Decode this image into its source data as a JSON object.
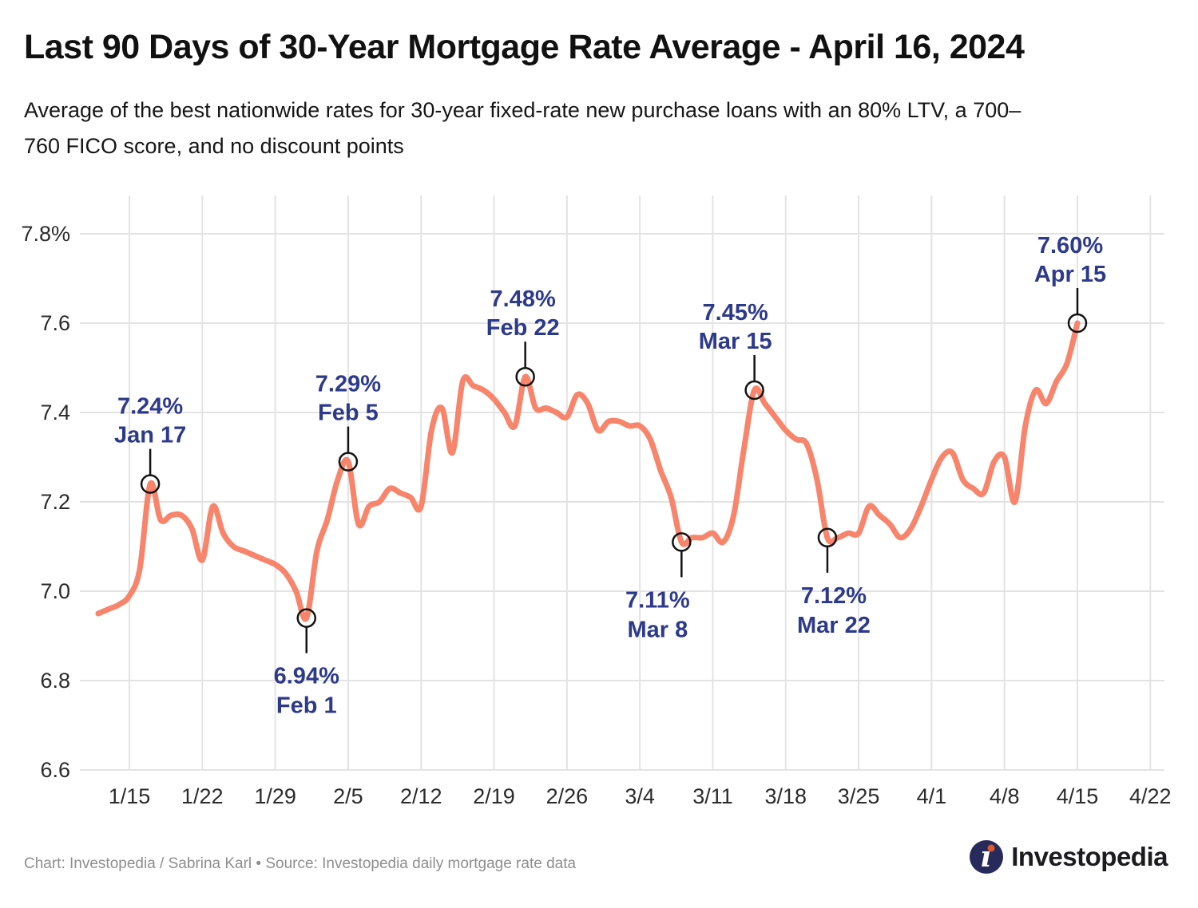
{
  "header": {
    "title": "Last 90 Days of 30-Year Mortgage Rate Average - April 16, 2024",
    "subtitle_line1": "Average of the best nationwide rates for 30-year fixed-rate new purchase loans with an 80% LTV, a 700–",
    "subtitle_line2": "760 FICO score, and no discount points"
  },
  "chart_data": {
    "type": "line",
    "title": "Last 90 Days of 30-Year Mortgage Rate Average - April 16, 2024",
    "xlabel": "",
    "ylabel": "",
    "ylim": [
      6.6,
      7.8
    ],
    "grid": true,
    "legend": "none",
    "line_color": "#F7846B",
    "marker_stroke_color": "#131313",
    "annotation_color": "#2D3A8C",
    "grid_color": "#E3E3E3",
    "tick_color": "#2B2B2B",
    "y_ticks": [
      {
        "value": 7.8,
        "label": "7.8%"
      },
      {
        "value": 7.6,
        "label": "7.6"
      },
      {
        "value": 7.4,
        "label": "7.4"
      },
      {
        "value": 7.2,
        "label": "7.2"
      },
      {
        "value": 7.0,
        "label": "7.0"
      },
      {
        "value": 6.8,
        "label": "6.8"
      },
      {
        "value": 6.6,
        "label": "6.6"
      }
    ],
    "x_ticks": [
      {
        "date": "1/15",
        "label": "1/15"
      },
      {
        "date": "1/22",
        "label": "1/22"
      },
      {
        "date": "1/29",
        "label": "1/29"
      },
      {
        "date": "2/5",
        "label": "2/5"
      },
      {
        "date": "2/12",
        "label": "2/12"
      },
      {
        "date": "2/19",
        "label": "2/19"
      },
      {
        "date": "2/26",
        "label": "2/26"
      },
      {
        "date": "3/4",
        "label": "3/4"
      },
      {
        "date": "3/11",
        "label": "3/11"
      },
      {
        "date": "3/18",
        "label": "3/18"
      },
      {
        "date": "3/25",
        "label": "3/25"
      },
      {
        "date": "4/1",
        "label": "4/1"
      },
      {
        "date": "4/8",
        "label": "4/8"
      },
      {
        "date": "4/15",
        "label": "4/15"
      },
      {
        "date": "4/22",
        "label": "4/22"
      }
    ],
    "x": [
      "1/12",
      "1/13",
      "1/14",
      "1/15",
      "1/16",
      "1/17",
      "1/18",
      "1/19",
      "1/20",
      "1/21",
      "1/22",
      "1/23",
      "1/24",
      "1/25",
      "1/26",
      "1/27",
      "1/28",
      "1/29",
      "1/30",
      "1/31",
      "2/1",
      "2/2",
      "2/3",
      "2/4",
      "2/5",
      "2/6",
      "2/7",
      "2/8",
      "2/9",
      "2/10",
      "2/11",
      "2/12",
      "2/13",
      "2/14",
      "2/15",
      "2/16",
      "2/17",
      "2/18",
      "2/19",
      "2/20",
      "2/21",
      "2/22",
      "2/23",
      "2/24",
      "2/25",
      "2/26",
      "2/27",
      "2/28",
      "2/29",
      "3/1",
      "3/2",
      "3/3",
      "3/4",
      "3/5",
      "3/6",
      "3/7",
      "3/8",
      "3/9",
      "3/10",
      "3/11",
      "3/12",
      "3/13",
      "3/14",
      "3/15",
      "3/16",
      "3/17",
      "3/18",
      "3/19",
      "3/20",
      "3/21",
      "3/22",
      "3/23",
      "3/24",
      "3/25",
      "3/26",
      "3/27",
      "3/28",
      "3/29",
      "3/30",
      "3/31",
      "4/1",
      "4/2",
      "4/3",
      "4/4",
      "4/5",
      "4/6",
      "4/7",
      "4/8",
      "4/9",
      "4/10",
      "4/11",
      "4/12",
      "4/13",
      "4/14",
      "4/15"
    ],
    "values": [
      6.95,
      6.96,
      6.97,
      6.99,
      7.05,
      7.24,
      7.16,
      7.17,
      7.17,
      7.14,
      7.07,
      7.19,
      7.13,
      7.1,
      7.09,
      7.08,
      7.07,
      7.06,
      7.04,
      7.0,
      6.94,
      7.09,
      7.16,
      7.25,
      7.29,
      7.15,
      7.19,
      7.2,
      7.23,
      7.22,
      7.21,
      7.19,
      7.36,
      7.41,
      7.31,
      7.47,
      7.46,
      7.45,
      7.43,
      7.4,
      7.37,
      7.48,
      7.41,
      7.41,
      7.4,
      7.39,
      7.44,
      7.42,
      7.36,
      7.38,
      7.38,
      7.37,
      7.37,
      7.34,
      7.27,
      7.21,
      7.11,
      7.12,
      7.12,
      7.13,
      7.11,
      7.17,
      7.32,
      7.45,
      7.42,
      7.39,
      7.36,
      7.34,
      7.33,
      7.25,
      7.12,
      7.12,
      7.13,
      7.13,
      7.19,
      7.17,
      7.15,
      7.12,
      7.14,
      7.19,
      7.25,
      7.3,
      7.31,
      7.25,
      7.23,
      7.22,
      7.29,
      7.3,
      7.2,
      7.37,
      7.45,
      7.42,
      7.47,
      7.51,
      7.6
    ],
    "annotations": [
      {
        "date": "1/17",
        "value": 7.24,
        "line1": "7.24%",
        "line2": "Jan 17",
        "side": "above",
        "dx": 0
      },
      {
        "date": "2/1",
        "value": 6.94,
        "line1": "6.94%",
        "line2": "Feb 1",
        "side": "below",
        "dx": 0
      },
      {
        "date": "2/5",
        "value": 7.29,
        "line1": "7.29%",
        "line2": "Feb 5",
        "side": "above",
        "dx": 0
      },
      {
        "date": "2/22",
        "value": 7.48,
        "line1": "7.48%",
        "line2": "Feb 22",
        "side": "above",
        "dx": -3
      },
      {
        "date": "3/8",
        "value": 7.11,
        "line1": "7.11%",
        "line2": "Mar 8",
        "side": "below",
        "dx": -30
      },
      {
        "date": "3/15",
        "value": 7.45,
        "line1": "7.45%",
        "line2": "Mar 15",
        "side": "above",
        "dx": -24
      },
      {
        "date": "3/22",
        "value": 7.12,
        "line1": "7.12%",
        "line2": "Mar 22",
        "side": "below",
        "dx": 8
      },
      {
        "date": "4/15",
        "value": 7.6,
        "line1": "7.60%",
        "line2": "Apr 15",
        "side": "above",
        "dx": -9
      }
    ]
  },
  "footer": {
    "credit": "Chart: Investopedia / Sabrina Karl • Source: Investopedia daily mortgage rate data",
    "logo_text": "Investopedia",
    "logo_circle_color": "#272A5B",
    "logo_dot_color": "#E0592B"
  }
}
